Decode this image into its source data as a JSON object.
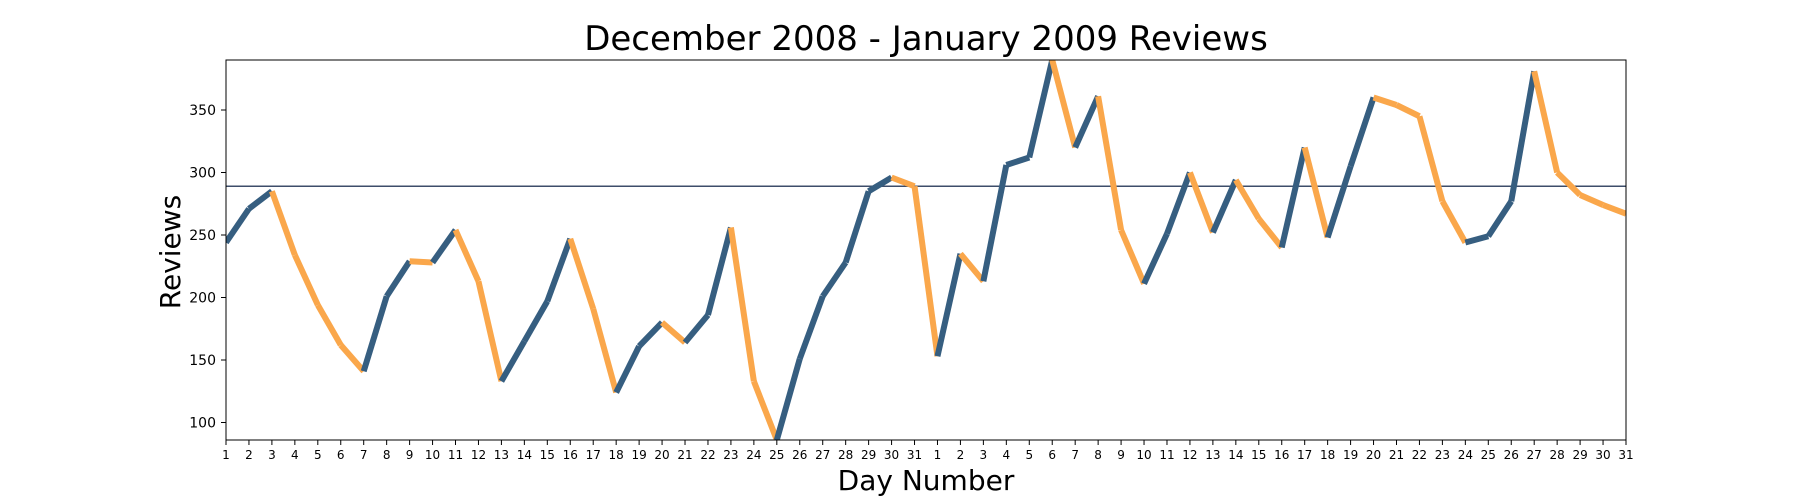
{
  "chart_data": {
    "type": "line",
    "title": "December 2008 - January 2009 Reviews",
    "xlabel": "Day Number",
    "ylabel": "Reviews",
    "ylim": [
      86,
      390
    ],
    "yticks": [
      100,
      150,
      200,
      250,
      300,
      350
    ],
    "x_tick_labels": [
      "1",
      "2",
      "3",
      "4",
      "5",
      "6",
      "7",
      "8",
      "9",
      "10",
      "11",
      "12",
      "13",
      "14",
      "15",
      "16",
      "17",
      "18",
      "19",
      "20",
      "21",
      "22",
      "23",
      "24",
      "25",
      "26",
      "27",
      "28",
      "29",
      "30",
      "31",
      "1",
      "2",
      "3",
      "4",
      "5",
      "6",
      "7",
      "8",
      "9",
      "10",
      "11",
      "12",
      "13",
      "14",
      "15",
      "16",
      "17",
      "18",
      "19",
      "20",
      "21",
      "22",
      "23",
      "24",
      "25",
      "26",
      "27",
      "28",
      "29",
      "30",
      "31"
    ],
    "values": [
      244,
      271,
      285,
      234,
      194,
      162,
      141,
      201,
      229,
      228,
      254,
      213,
      133,
      165,
      197,
      247,
      191,
      124,
      161,
      180,
      164,
      186,
      256,
      133,
      86,
      151,
      201,
      228,
      285,
      296,
      289,
      153,
      235,
      213,
      306,
      312,
      390,
      320,
      361,
      254,
      211,
      251,
      300,
      252,
      294,
      263,
      240,
      320,
      248,
      305,
      360,
      354,
      345,
      277,
      244,
      249,
      277,
      381,
      300,
      282,
      274,
      267
    ],
    "reference_line": 289,
    "colors": {
      "below_average": "#FAA74B",
      "above_average": "#365E80",
      "reference_line": "#3D4D6A",
      "axes": "#000000"
    },
    "grid": false,
    "legend": "none"
  }
}
